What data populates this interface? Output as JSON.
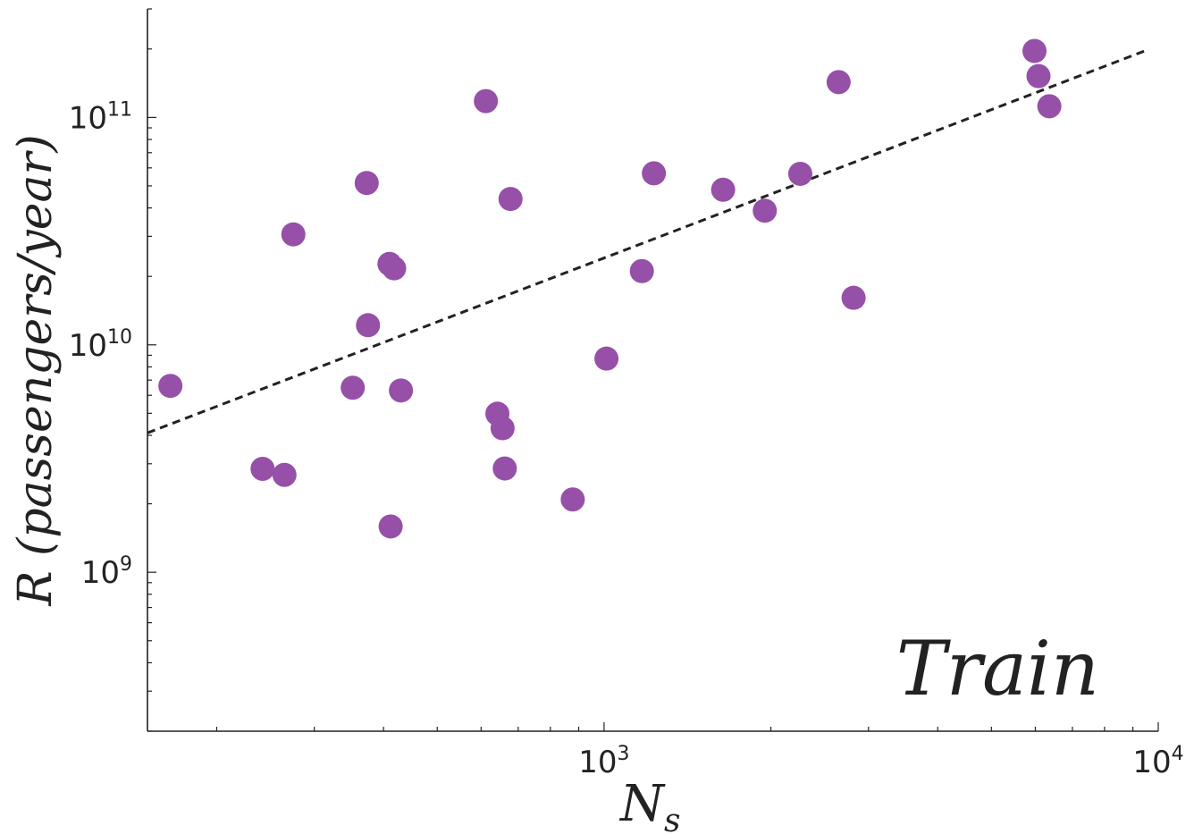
{
  "chart_data": {
    "type": "scatter",
    "x_scale": "log",
    "y_scale": "log",
    "xlim": [
      150,
      10000
    ],
    "ylim": [
      200000000,
      300000000000
    ],
    "x_ticks": [
      {
        "value": 1000,
        "base": "10",
        "exp": "3"
      },
      {
        "value": 10000,
        "base": "10",
        "exp": "4"
      }
    ],
    "y_ticks": [
      {
        "value": 1000000000,
        "base": "10",
        "exp": "9"
      },
      {
        "value": 10000000000,
        "base": "10",
        "exp": "10"
      },
      {
        "value": 100000000000,
        "base": "10",
        "exp": "11"
      }
    ],
    "xlabel": {
      "main": "N",
      "sub": "s"
    },
    "ylabel": "R (passengers/year)",
    "annotation": "Train",
    "grid": false,
    "legend": "none",
    "marker_color": "#9650a8",
    "fit_line_color": "#222222",
    "points": [
      {
        "x": 165,
        "y": 6600000000
      },
      {
        "x": 242,
        "y": 2850000000
      },
      {
        "x": 265,
        "y": 2680000000
      },
      {
        "x": 275,
        "y": 30600000000
      },
      {
        "x": 352,
        "y": 6480000000
      },
      {
        "x": 373,
        "y": 51500000000
      },
      {
        "x": 375,
        "y": 12200000000
      },
      {
        "x": 410,
        "y": 22700000000
      },
      {
        "x": 418,
        "y": 21700000000
      },
      {
        "x": 430,
        "y": 6300000000
      },
      {
        "x": 412,
        "y": 1590000000
      },
      {
        "x": 612,
        "y": 118000000000
      },
      {
        "x": 642,
        "y": 4980000000
      },
      {
        "x": 656,
        "y": 4300000000
      },
      {
        "x": 662,
        "y": 2860000000
      },
      {
        "x": 678,
        "y": 43800000000
      },
      {
        "x": 878,
        "y": 2090000000
      },
      {
        "x": 1010,
        "y": 8700000000
      },
      {
        "x": 1170,
        "y": 21100000000
      },
      {
        "x": 1230,
        "y": 56800000000
      },
      {
        "x": 1640,
        "y": 48100000000
      },
      {
        "x": 1950,
        "y": 38900000000
      },
      {
        "x": 2260,
        "y": 56500000000
      },
      {
        "x": 2650,
        "y": 143000000000
      },
      {
        "x": 2820,
        "y": 16100000000
      },
      {
        "x": 5980,
        "y": 196000000000
      },
      {
        "x": 6080,
        "y": 152000000000
      },
      {
        "x": 6360,
        "y": 112000000000
      }
    ],
    "fit_line": {
      "x": [
        150,
        9500
      ],
      "y": [
        4100000000,
        197000000000
      ]
    }
  }
}
